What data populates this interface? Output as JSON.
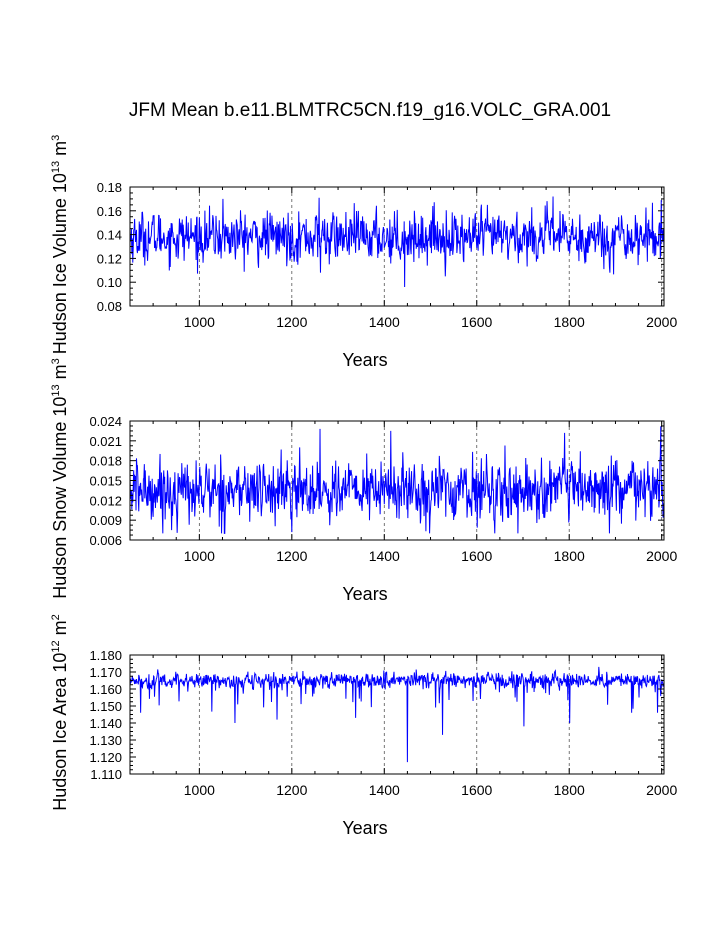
{
  "title": "JFM Mean b.e11.BLMTRC5CN.f19_g16.VOLC_GRA.001",
  "line_color": "#0000ff",
  "chart_data": [
    {
      "type": "line",
      "ylabel_main": "Hudson Ice Volume 10",
      "ylabel_sup": "13",
      "ylabel_tail": " m",
      "ylabel_tail_sup": "3",
      "xlabel": "Years",
      "xlim": [
        850,
        2005
      ],
      "ylim": [
        0.08,
        0.18
      ],
      "xticks": [
        1000,
        1200,
        1400,
        1600,
        1800,
        2000
      ],
      "xtick_labels": [
        "1000",
        "1200",
        "1400",
        "1600",
        "1800",
        "2000"
      ],
      "yticks": [
        0.08,
        0.1,
        0.12,
        0.14,
        0.16,
        0.18
      ],
      "ytick_labels": [
        "0.08",
        "0.10",
        "0.12",
        "0.14",
        "0.16",
        "0.18"
      ],
      "vlines": [
        1000,
        1200,
        1400,
        1600,
        1800,
        2000
      ],
      "series": {
        "name": "Hudson Ice Volume",
        "x_start": 850,
        "x_end": 2005,
        "mean": 0.138,
        "sd": 0.01,
        "min_clip": 0.096,
        "max_clip": 0.172,
        "extremes": [
          [
            1051,
            0.17
          ],
          [
            1259,
            0.171
          ],
          [
            1262,
            0.108
          ],
          [
            1444,
            0.096
          ],
          [
            1505,
            0.164
          ],
          [
            1765,
            0.172
          ],
          [
            1999,
            0.169
          ],
          [
            1875,
            0.111
          ]
        ]
      }
    },
    {
      "type": "line",
      "ylabel_main": "Hudson Snow Volume 10",
      "ylabel_sup": "13",
      "ylabel_tail": " m",
      "ylabel_tail_sup": "3",
      "xlabel": "Years",
      "xlim": [
        850,
        2005
      ],
      "ylim": [
        0.006,
        0.024
      ],
      "xticks": [
        1000,
        1200,
        1400,
        1600,
        1800,
        2000
      ],
      "xtick_labels": [
        "1000",
        "1200",
        "1400",
        "1600",
        "1800",
        "2000"
      ],
      "yticks": [
        0.006,
        0.009,
        0.012,
        0.015,
        0.018,
        0.021,
        0.024
      ],
      "ytick_labels": [
        "0.006",
        "0.009",
        "0.012",
        "0.015",
        "0.018",
        "0.021",
        "0.024"
      ],
      "vlines": [
        1000,
        1200,
        1400,
        1600,
        1800,
        2000
      ],
      "series": {
        "name": "Hudson Snow Volume",
        "x_start": 850,
        "x_end": 2005,
        "mean": 0.0135,
        "sd": 0.0022,
        "min_clip": 0.007,
        "max_clip": 0.0232,
        "extremes": [
          [
            1261,
            0.0228
          ],
          [
            1414,
            0.0225
          ],
          [
            1790,
            0.0222
          ],
          [
            1998,
            0.0232
          ],
          [
            1200,
            0.0072
          ],
          [
            940,
            0.0075
          ]
        ]
      }
    },
    {
      "type": "line",
      "ylabel_main": "Hudson Ice Area 10",
      "ylabel_sup": "12",
      "ylabel_tail": " m",
      "ylabel_tail_sup": "2",
      "xlabel": "Years",
      "xlim": [
        850,
        2005
      ],
      "ylim": [
        1.11,
        1.18
      ],
      "xticks": [
        1000,
        1200,
        1400,
        1600,
        1800,
        2000
      ],
      "xtick_labels": [
        "1000",
        "1200",
        "1400",
        "1600",
        "1800",
        "2000"
      ],
      "yticks": [
        1.11,
        1.12,
        1.13,
        1.14,
        1.15,
        1.16,
        1.17,
        1.18
      ],
      "ytick_labels": [
        "1.110",
        "1.120",
        "1.130",
        "1.140",
        "1.150",
        "1.160",
        "1.170",
        "1.180"
      ],
      "vlines": [
        1000,
        1200,
        1400,
        1600,
        1800,
        2000
      ],
      "series": {
        "name": "Hudson Ice Area",
        "x_start": 850,
        "x_end": 2005,
        "mean": 1.165,
        "sd": 0.0025,
        "min_clip": 1.116,
        "max_clip": 1.173,
        "extremes": [
          [
            1450,
            1.117
          ],
          [
            1526,
            1.133
          ],
          [
            1338,
            1.143
          ],
          [
            1702,
            1.138
          ],
          [
            1801,
            1.14
          ],
          [
            1935,
            1.146
          ],
          [
            1077,
            1.14
          ],
          [
            873,
            1.146
          ],
          [
            1168,
            1.142
          ],
          [
            1991,
            1.146
          ]
        ]
      }
    }
  ]
}
